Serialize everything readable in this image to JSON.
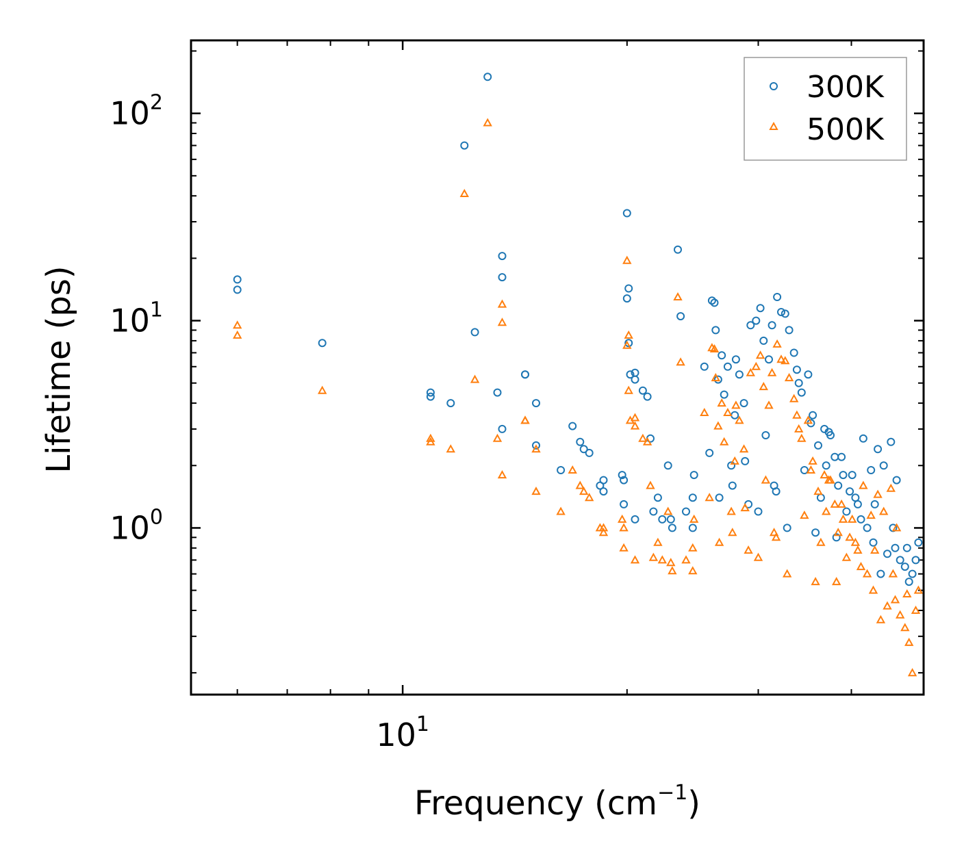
{
  "chart_data": {
    "type": "scatter",
    "xscale": "log",
    "yscale": "log",
    "xlim": [
      5.2,
      50
    ],
    "ylim": [
      0.157,
      225
    ],
    "xlabel": "Frequency (cm",
    "xlabel_sup": "−1",
    "xlabel_end": ")",
    "ylabel": "Lifetime (ps)",
    "legend_position": "top-right",
    "x_ticks": [
      {
        "base": "10",
        "exp": "1",
        "value": 10
      }
    ],
    "y_ticks": [
      {
        "base": "10",
        "exp": "0",
        "value": 1
      },
      {
        "base": "10",
        "exp": "1",
        "value": 10
      },
      {
        "base": "10",
        "exp": "2",
        "value": 100
      }
    ],
    "series": [
      {
        "name": "300K",
        "marker": "circle",
        "color": "#1f77b4",
        "x": [
          6.0,
          6.0,
          7.8,
          10.9,
          10.9,
          11.6,
          12.1,
          12.5,
          13.0,
          13.4,
          13.6,
          13.6,
          13.6,
          14.6,
          14.6,
          15.1,
          15.1,
          16.3,
          16.9,
          17.3,
          17.5,
          17.8,
          18.4,
          18.6,
          18.6,
          19.7,
          19.8,
          19.8,
          20.0,
          20.0,
          20.1,
          20.1,
          20.2,
          20.5,
          20.5,
          20.5,
          21.0,
          21.3,
          21.5,
          21.7,
          22.0,
          22.3,
          22.7,
          22.9,
          23.0,
          23.4,
          23.6,
          24.0,
          24.5,
          24.5,
          25.4,
          26.0,
          26.2,
          26.3,
          26.5,
          26.8,
          27.0,
          27.3,
          27.6,
          28.0,
          28.3,
          28.7,
          29.3,
          29.8,
          30.2,
          30.5,
          31.0,
          31.3,
          31.8,
          32.2,
          32.6,
          33.0,
          33.5,
          34.0,
          34.3,
          35.0,
          35.5,
          36.1,
          36.8,
          37.0,
          37.5,
          38.0,
          38.4,
          39.0,
          39.8,
          40.5,
          41.2,
          42.0,
          42.8,
          43.8,
          44.7,
          45.8,
          46.5,
          47.2,
          47.8,
          48.3,
          48.8,
          49.2,
          25.8,
          27.9,
          28.8,
          30.7,
          31.5,
          33.8,
          35.3,
          37.3,
          38.8,
          40.1,
          41.5,
          42.5,
          43.4,
          44.2,
          45.2,
          46.0,
          29.1,
          31.7,
          34.6,
          36.4,
          39.4,
          43.0,
          24.6,
          26.6,
          27.7,
          30.0,
          32.8,
          35.8,
          38.2,
          40.8,
          45.5,
          47.5
        ],
        "y": [
          15.8,
          14.1,
          7.8,
          4.5,
          4.3,
          4.0,
          70.0,
          8.8,
          150.0,
          4.5,
          20.5,
          16.2,
          3.0,
          5.5,
          5.5,
          4.0,
          2.5,
          1.9,
          3.1,
          2.6,
          2.4,
          2.3,
          1.6,
          1.7,
          1.5,
          1.8,
          1.7,
          1.3,
          33.0,
          12.8,
          14.3,
          7.8,
          5.5,
          5.6,
          5.2,
          1.1,
          4.6,
          4.3,
          2.7,
          1.2,
          1.4,
          1.1,
          2.0,
          1.1,
          1.0,
          22.0,
          10.5,
          1.2,
          1.4,
          1.0,
          6.0,
          12.5,
          12.2,
          9.0,
          5.2,
          6.8,
          4.4,
          6.0,
          2.0,
          6.5,
          5.5,
          4.0,
          9.5,
          10.0,
          11.5,
          8.0,
          6.5,
          9.5,
          13.0,
          11.0,
          10.8,
          9.0,
          7.0,
          5.0,
          4.5,
          5.5,
          3.5,
          2.5,
          3.0,
          2.0,
          2.8,
          2.2,
          1.6,
          1.8,
          1.5,
          1.4,
          1.1,
          1.0,
          0.85,
          0.6,
          0.75,
          0.8,
          0.7,
          0.65,
          0.55,
          0.6,
          0.7,
          0.85,
          2.3,
          3.5,
          2.1,
          2.8,
          1.6,
          5.8,
          3.2,
          2.9,
          2.2,
          1.8,
          2.7,
          1.9,
          2.4,
          2.0,
          2.6,
          1.7,
          1.3,
          1.5,
          1.9,
          1.4,
          1.2,
          1.3,
          1.8,
          1.4,
          1.6,
          1.2,
          1.0,
          0.95,
          0.9,
          1.3,
          1.0,
          0.8
        ]
      },
      {
        "name": "500K",
        "marker": "triangle",
        "color": "#ff7f0e",
        "x": [
          6.0,
          6.0,
          7.8,
          10.9,
          10.9,
          11.6,
          12.1,
          12.5,
          13.0,
          13.4,
          13.6,
          13.6,
          13.6,
          14.6,
          14.6,
          15.1,
          15.1,
          16.3,
          16.9,
          17.3,
          17.5,
          17.8,
          18.4,
          18.6,
          18.6,
          19.7,
          19.8,
          19.8,
          20.0,
          20.0,
          20.1,
          20.1,
          20.2,
          20.5,
          20.5,
          20.5,
          21.0,
          21.3,
          21.5,
          21.7,
          22.0,
          22.3,
          22.7,
          22.9,
          23.0,
          23.4,
          23.6,
          24.0,
          24.5,
          24.5,
          25.4,
          26.0,
          26.2,
          26.3,
          26.5,
          26.8,
          27.0,
          27.3,
          27.6,
          28.0,
          28.3,
          28.7,
          29.3,
          29.8,
          30.2,
          30.5,
          31.0,
          31.3,
          31.8,
          32.2,
          32.6,
          33.0,
          33.5,
          34.0,
          34.3,
          35.0,
          35.5,
          36.1,
          36.8,
          37.0,
          37.5,
          38.0,
          38.4,
          39.0,
          39.8,
          40.5,
          41.2,
          42.0,
          42.8,
          43.8,
          44.7,
          45.8,
          46.5,
          47.2,
          47.8,
          48.3,
          48.8,
          49.2,
          25.8,
          27.9,
          28.8,
          30.7,
          31.5,
          33.8,
          35.3,
          37.3,
          38.8,
          40.1,
          41.5,
          42.5,
          43.4,
          44.2,
          45.2,
          46.0,
          29.1,
          31.7,
          34.6,
          36.4,
          39.4,
          43.0,
          24.6,
          26.6,
          27.7,
          30.0,
          32.8,
          35.8,
          38.2,
          40.8,
          45.5,
          47.5
        ],
        "y": [
          9.5,
          8.5,
          4.6,
          2.7,
          2.6,
          2.4,
          41.0,
          5.2,
          90.0,
          2.7,
          12.0,
          9.8,
          1.8,
          3.3,
          3.3,
          2.4,
          1.5,
          1.2,
          1.9,
          1.6,
          1.5,
          1.4,
          1.0,
          1.0,
          0.95,
          1.1,
          1.0,
          0.8,
          19.5,
          7.6,
          8.5,
          4.6,
          3.3,
          3.4,
          3.1,
          0.7,
          2.7,
          2.6,
          1.6,
          0.72,
          0.85,
          0.7,
          1.2,
          0.68,
          0.62,
          13.0,
          6.3,
          0.7,
          0.8,
          0.62,
          3.6,
          7.4,
          7.3,
          5.3,
          3.1,
          4.0,
          2.6,
          3.6,
          1.2,
          3.9,
          3.3,
          2.4,
          5.6,
          6.0,
          6.8,
          4.8,
          3.9,
          5.6,
          7.7,
          6.5,
          6.4,
          5.3,
          4.2,
          3.0,
          2.7,
          3.3,
          2.1,
          1.5,
          1.8,
          1.2,
          1.7,
          1.3,
          0.95,
          1.1,
          0.9,
          0.85,
          0.65,
          0.6,
          0.5,
          0.36,
          0.42,
          0.45,
          0.38,
          0.33,
          0.28,
          0.2,
          0.4,
          0.5,
          1.4,
          2.1,
          1.25,
          1.7,
          0.95,
          3.5,
          1.9,
          1.7,
          1.3,
          1.1,
          1.6,
          1.15,
          1.45,
          1.2,
          1.55,
          1.0,
          0.78,
          0.9,
          1.15,
          0.85,
          0.72,
          0.78,
          1.1,
          0.85,
          0.95,
          0.72,
          0.6,
          0.55,
          0.55,
          0.78,
          0.6,
          0.48
        ]
      }
    ]
  }
}
